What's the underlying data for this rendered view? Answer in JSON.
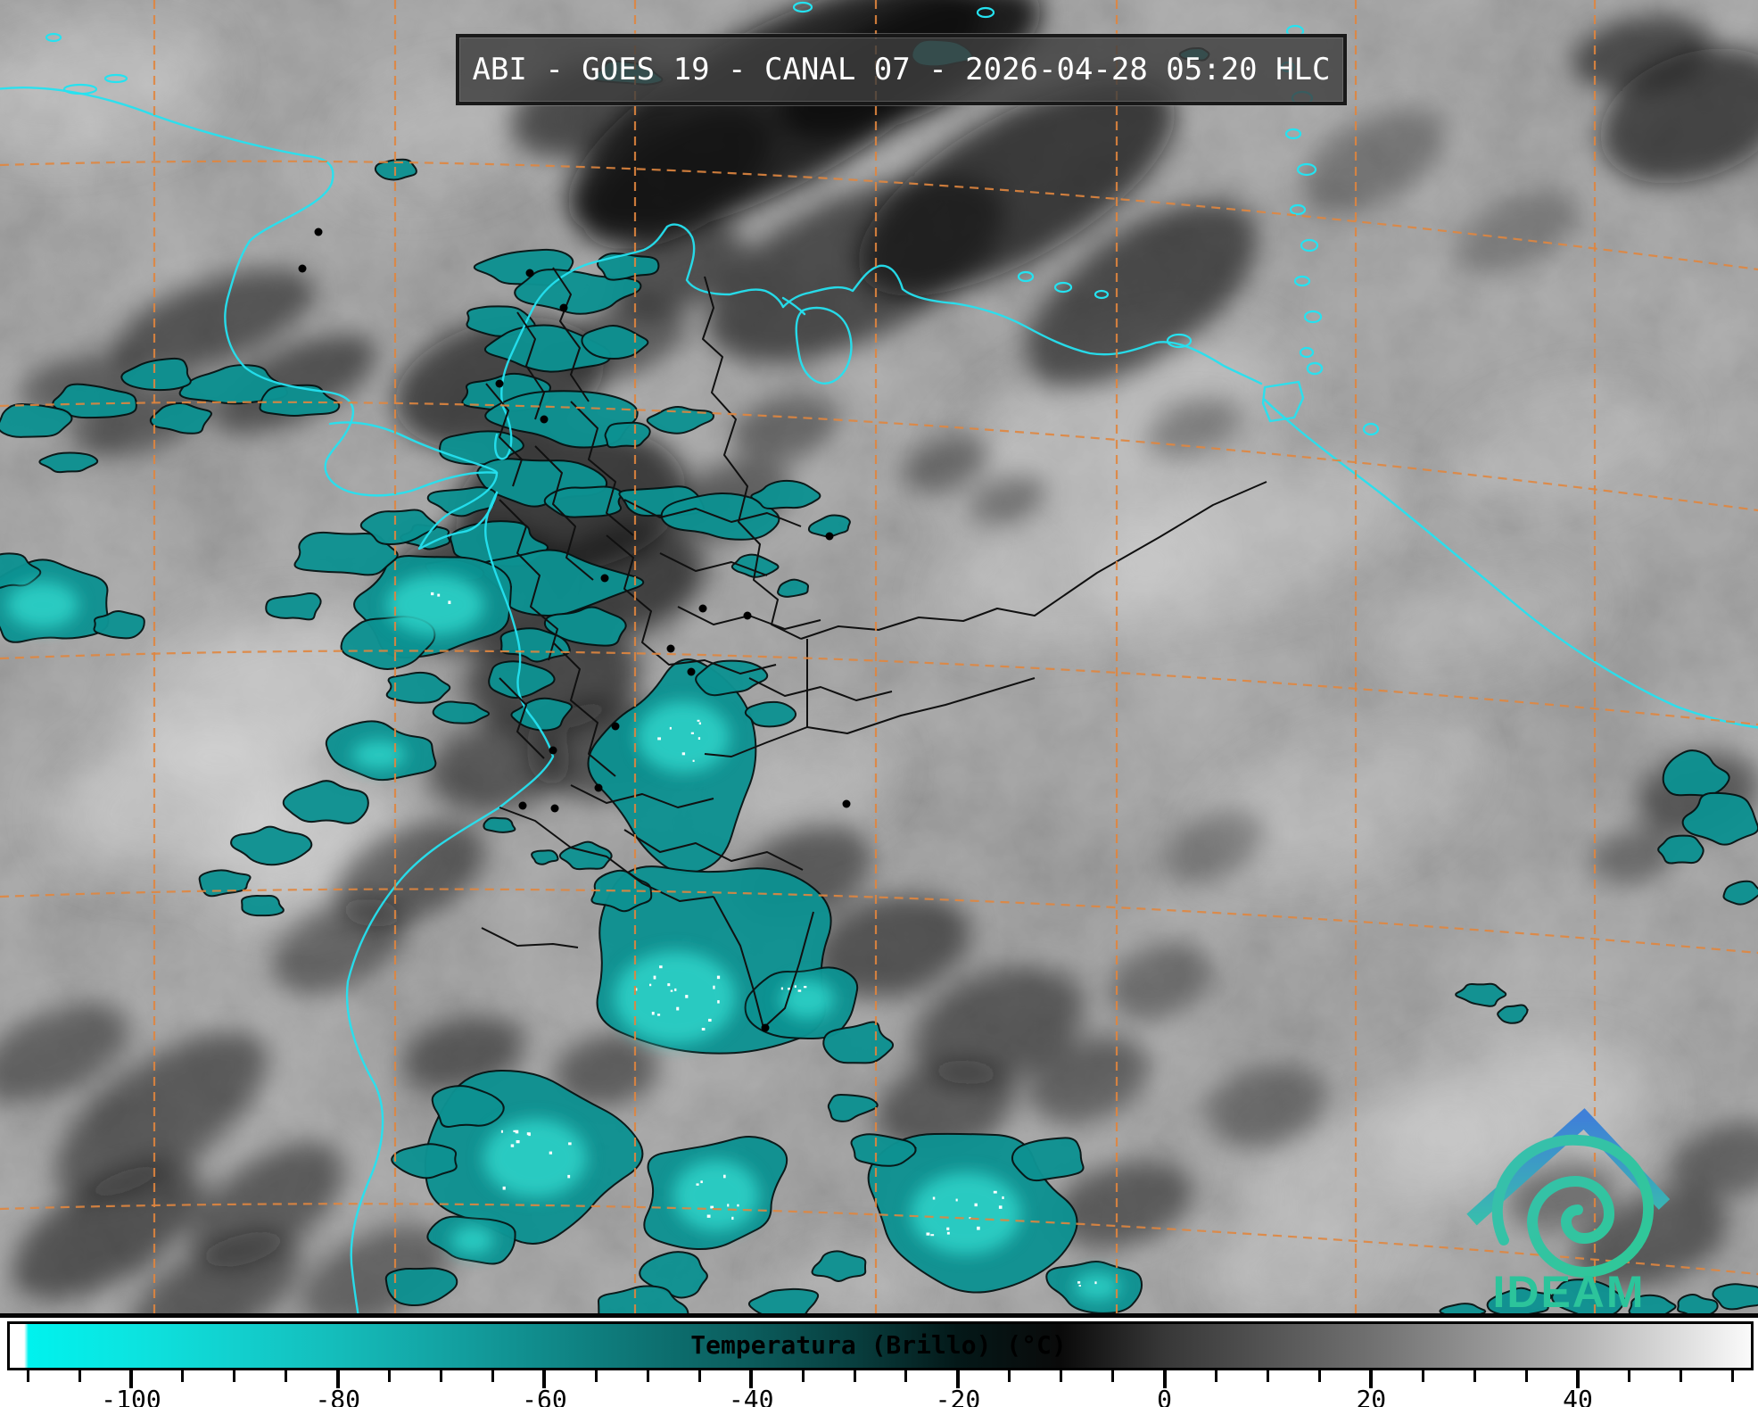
{
  "title_bar": {
    "text": "ABI - GOES 19 - CANAL 07 - 2026-04-28 05:20 HLC"
  },
  "logo": {
    "name": "IDEAM"
  },
  "colorbar": {
    "label": "Temperatura (Brillo) (°C)",
    "unit": "°C",
    "range_min": -112,
    "range_max": 57,
    "major_ticks": [
      -100,
      -80,
      -60,
      -40,
      -20,
      0,
      20,
      40
    ],
    "minor_tick_step": 5,
    "gradient_stops": [
      {
        "value": -112,
        "color": "#ffffff"
      },
      {
        "value": -110.6,
        "color": "#ffffff"
      },
      {
        "value": -110.2,
        "color": "#00f2ee"
      },
      {
        "value": -100,
        "color": "#0ce4e0"
      },
      {
        "value": -90,
        "color": "#12d0ce"
      },
      {
        "value": -80,
        "color": "#14bcba"
      },
      {
        "value": -70,
        "color": "#13a3a3"
      },
      {
        "value": -60,
        "color": "#108a8a"
      },
      {
        "value": -50,
        "color": "#0d7272"
      },
      {
        "value": -40,
        "color": "#0b5c5c"
      },
      {
        "value": -30,
        "color": "#083e3e"
      },
      {
        "value": -20,
        "color": "#041818"
      },
      {
        "value": -10,
        "color": "#0a0a0a"
      },
      {
        "value": 0,
        "color": "#373737"
      },
      {
        "value": 20,
        "color": "#707070"
      },
      {
        "value": 40,
        "color": "#b2b2b2"
      },
      {
        "value": 57,
        "color": "#fafafa"
      }
    ]
  },
  "map": {
    "colors": {
      "background": "#a2a2a2",
      "coastline": "#25e2f0",
      "graticule": "#e0863f",
      "border": "#101010",
      "cold_cloud": "#0d9191",
      "cold_cloud_bright": "#2fd0c6",
      "city_marker": "#000000"
    }
  }
}
